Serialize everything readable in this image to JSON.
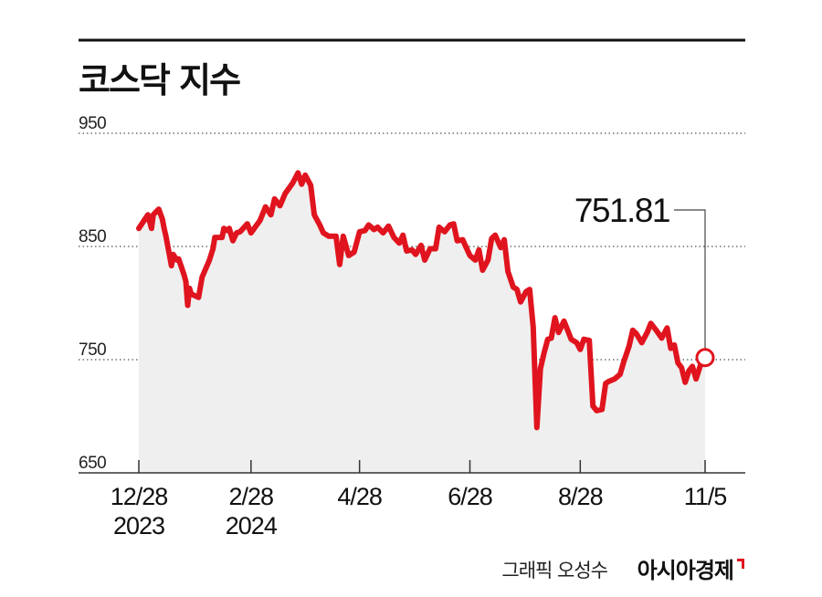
{
  "colors": {
    "line": "#e0141e",
    "area": "#efefef",
    "grid": "#555555",
    "rule": "#111111",
    "axis": "#333333"
  },
  "footer": {
    "credit": "그래픽 오성수",
    "brand": "아시아경제"
  },
  "chart_data": {
    "type": "area",
    "title": "코스닥 지수",
    "xlabel": "",
    "ylabel": "",
    "ylim": [
      650,
      950
    ],
    "grid": "horizontal-dotted",
    "y_ticks": [
      "950",
      "850",
      "750",
      "650"
    ],
    "x_ticks": [
      {
        "date": "2023-12-28",
        "label": "12/28",
        "sublabel": "2023"
      },
      {
        "date": "2024-02-28",
        "label": "2/28",
        "sublabel": "2024"
      },
      {
        "date": "2024-04-28",
        "label": "4/28",
        "sublabel": ""
      },
      {
        "date": "2024-06-28",
        "label": "6/28",
        "sublabel": ""
      },
      {
        "date": "2024-08-28",
        "label": "8/28",
        "sublabel": ""
      },
      {
        "date": "2024-11-05",
        "label": "11/5",
        "sublabel": ""
      }
    ],
    "annotation": {
      "date": "2024-11-05",
      "value": 751.81,
      "label": "751.81"
    },
    "series": [
      {
        "values": [
          [
            "2023-12-28",
            866
          ],
          [
            "2024-01-02",
            878
          ],
          [
            "2024-01-04",
            866
          ],
          [
            "2024-01-05",
            878
          ],
          [
            "2024-01-08",
            883
          ],
          [
            "2024-01-10",
            874
          ],
          [
            "2024-01-11",
            866
          ],
          [
            "2024-01-12",
            859
          ],
          [
            "2024-01-15",
            833
          ],
          [
            "2024-01-16",
            843
          ],
          [
            "2024-01-18",
            838
          ],
          [
            "2024-01-19",
            839
          ],
          [
            "2024-01-22",
            825
          ],
          [
            "2024-01-23",
            819
          ],
          [
            "2024-01-24",
            798
          ],
          [
            "2024-01-25",
            813
          ],
          [
            "2024-01-26",
            808
          ],
          [
            "2024-01-30",
            805
          ],
          [
            "2024-02-01",
            823
          ],
          [
            "2024-02-05",
            838
          ],
          [
            "2024-02-07",
            848
          ],
          [
            "2024-02-08",
            858
          ],
          [
            "2024-02-12",
            858
          ],
          [
            "2024-02-13",
            866
          ],
          [
            "2024-02-15",
            864
          ],
          [
            "2024-02-16",
            866
          ],
          [
            "2024-02-18",
            855
          ],
          [
            "2024-02-20",
            862
          ],
          [
            "2024-02-22",
            863
          ],
          [
            "2024-02-26",
            870
          ],
          [
            "2024-02-28",
            862
          ],
          [
            "2024-03-04",
            873
          ],
          [
            "2024-03-07",
            885
          ],
          [
            "2024-03-10",
            878
          ],
          [
            "2024-03-12",
            892
          ],
          [
            "2024-03-15",
            886
          ],
          [
            "2024-03-18",
            897
          ],
          [
            "2024-03-22",
            906
          ],
          [
            "2024-03-25",
            915
          ],
          [
            "2024-03-27",
            905
          ],
          [
            "2024-03-29",
            913
          ],
          [
            "2024-04-01",
            904
          ],
          [
            "2024-04-03",
            878
          ],
          [
            "2024-04-06",
            869
          ],
          [
            "2024-04-08",
            862
          ],
          [
            "2024-04-11",
            859
          ],
          [
            "2024-04-15",
            859
          ],
          [
            "2024-04-17",
            834
          ],
          [
            "2024-04-19",
            859
          ],
          [
            "2024-04-22",
            842
          ],
          [
            "2024-04-25",
            845
          ],
          [
            "2024-04-28",
            863
          ],
          [
            "2024-05-01",
            864
          ],
          [
            "2024-05-03",
            869
          ],
          [
            "2024-05-06",
            865
          ],
          [
            "2024-05-08",
            867
          ],
          [
            "2024-05-11",
            862
          ],
          [
            "2024-05-14",
            868
          ],
          [
            "2024-05-17",
            858
          ],
          [
            "2024-05-20",
            853
          ],
          [
            "2024-05-22",
            860
          ],
          [
            "2024-05-24",
            846
          ],
          [
            "2024-05-27",
            847
          ],
          [
            "2024-05-29",
            843
          ],
          [
            "2024-06-01",
            851
          ],
          [
            "2024-06-03",
            838
          ],
          [
            "2024-06-06",
            848
          ],
          [
            "2024-06-09",
            848
          ],
          [
            "2024-06-11",
            867
          ],
          [
            "2024-06-14",
            863
          ],
          [
            "2024-06-17",
            869
          ],
          [
            "2024-06-19",
            870
          ],
          [
            "2024-06-21",
            855
          ],
          [
            "2024-06-24",
            856
          ],
          [
            "2024-06-26",
            849
          ],
          [
            "2024-06-28",
            842
          ],
          [
            "2024-07-01",
            838
          ],
          [
            "2024-07-03",
            847
          ],
          [
            "2024-07-05",
            829
          ],
          [
            "2024-07-08",
            838
          ],
          [
            "2024-07-10",
            857
          ],
          [
            "2024-07-12",
            860
          ],
          [
            "2024-07-15",
            849
          ],
          [
            "2024-07-17",
            856
          ],
          [
            "2024-07-19",
            828
          ],
          [
            "2024-07-22",
            814
          ],
          [
            "2024-07-24",
            812
          ],
          [
            "2024-07-26",
            801
          ],
          [
            "2024-07-29",
            810
          ],
          [
            "2024-07-31",
            812
          ],
          [
            "2024-08-02",
            779
          ],
          [
            "2024-08-04",
            690
          ],
          [
            "2024-08-06",
            742
          ],
          [
            "2024-08-08",
            756
          ],
          [
            "2024-08-10",
            768
          ],
          [
            "2024-08-12",
            769
          ],
          [
            "2024-08-14",
            787
          ],
          [
            "2024-08-16",
            774
          ],
          [
            "2024-08-19",
            784
          ],
          [
            "2024-08-21",
            776
          ],
          [
            "2024-08-23",
            768
          ],
          [
            "2024-08-26",
            765
          ],
          [
            "2024-08-28",
            759
          ],
          [
            "2024-08-30",
            768
          ],
          [
            "2024-09-02",
            767
          ],
          [
            "2024-09-04",
            709
          ],
          [
            "2024-09-06",
            705
          ],
          [
            "2024-09-09",
            706
          ],
          [
            "2024-09-11",
            729
          ],
          [
            "2024-09-13",
            731
          ],
          [
            "2024-09-16",
            733
          ],
          [
            "2024-09-19",
            737
          ],
          [
            "2024-09-21",
            748
          ],
          [
            "2024-09-24",
            762
          ],
          [
            "2024-09-26",
            776
          ],
          [
            "2024-09-28",
            773
          ],
          [
            "2024-10-01",
            765
          ],
          [
            "2024-10-04",
            774
          ],
          [
            "2024-10-06",
            782
          ],
          [
            "2024-10-09",
            776
          ],
          [
            "2024-10-12",
            769
          ],
          [
            "2024-10-15",
            778
          ],
          [
            "2024-10-17",
            760
          ],
          [
            "2024-10-19",
            763
          ],
          [
            "2024-10-21",
            747
          ],
          [
            "2024-10-23",
            743
          ],
          [
            "2024-10-25",
            730
          ],
          [
            "2024-10-27",
            740
          ],
          [
            "2024-10-29",
            744
          ],
          [
            "2024-10-31",
            733
          ],
          [
            "2024-11-03",
            748
          ],
          [
            "2024-11-05",
            751.81
          ]
        ]
      }
    ]
  }
}
